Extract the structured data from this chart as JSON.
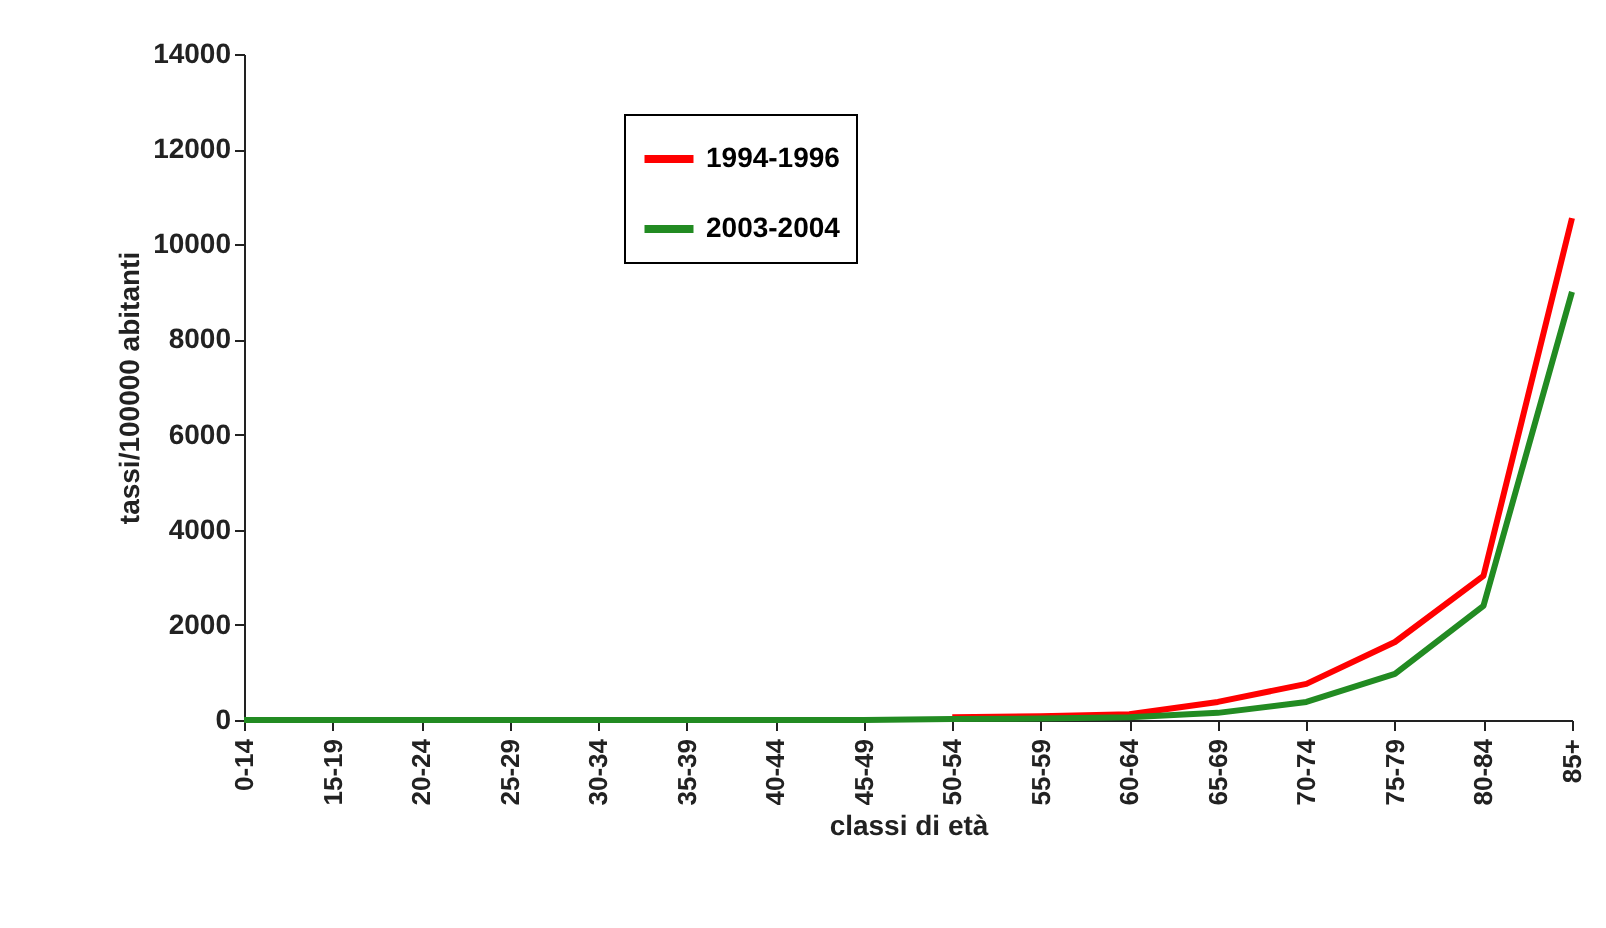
{
  "chart_data": {
    "type": "line",
    "xlabel": "classi di età",
    "ylabel": "tassi/100000 abitanti",
    "categories": [
      "0-14",
      "15-19",
      "20-24",
      "25-29",
      "30-34",
      "35-39",
      "40-44",
      "45-49",
      "50-54",
      "55-59",
      "60-64",
      "65-69",
      "70-74",
      "75-79",
      "80-84",
      "85+"
    ],
    "series": [
      {
        "name": "1994-1996",
        "color": "#ff0000",
        "values": [
          null,
          null,
          null,
          null,
          null,
          null,
          null,
          null,
          60,
          80,
          120,
          380,
          760,
          1640,
          3030,
          10550
        ]
      },
      {
        "name": "2003-2004",
        "color": "#228b22",
        "values": [
          0,
          0,
          0,
          0,
          0,
          0,
          0,
          0,
          20,
          30,
          60,
          150,
          380,
          970,
          2400,
          9000
        ]
      }
    ],
    "ylim": [
      0,
      14000
    ],
    "yticks": [
      0,
      2000,
      4000,
      6000,
      8000,
      10000,
      12000,
      14000
    ],
    "legend": "top",
    "grid": false,
    "marker": "none",
    "line_style": "solid"
  }
}
